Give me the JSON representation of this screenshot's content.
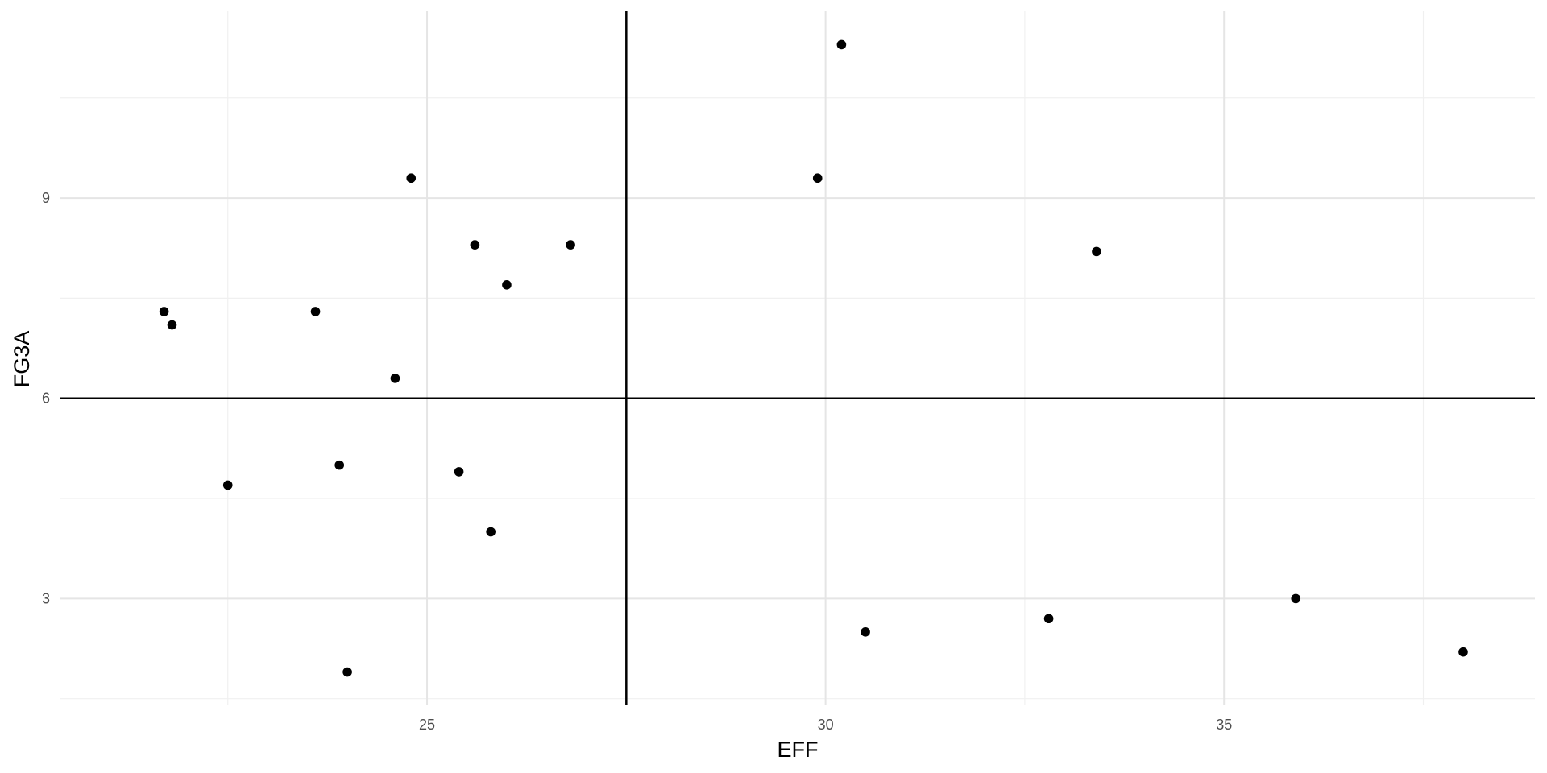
{
  "chart_data": {
    "type": "scatter",
    "title": "",
    "xlabel": "EFF",
    "ylabel": "FG3A",
    "xlim": [
      20.4,
      38.9
    ],
    "ylim": [
      1.4,
      11.8
    ],
    "x_ticks": [
      25,
      30,
      35
    ],
    "y_ticks": [
      3,
      6,
      9
    ],
    "x_minor_ticks": [
      22.5,
      27.5,
      32.5,
      37.5
    ],
    "y_minor_ticks": [
      1.5,
      4.5,
      7.5,
      10.5
    ],
    "grid": true,
    "legend": "none",
    "reference_lines": {
      "vertical_x": 27.5,
      "horizontal_y": 6.0
    },
    "series": [
      {
        "points": [
          {
            "x": 30.2,
            "y": 11.3
          },
          {
            "x": 24.8,
            "y": 9.3
          },
          {
            "x": 29.9,
            "y": 9.3
          },
          {
            "x": 25.6,
            "y": 8.3
          },
          {
            "x": 26.8,
            "y": 8.3
          },
          {
            "x": 33.4,
            "y": 8.2
          },
          {
            "x": 26.0,
            "y": 7.7
          },
          {
            "x": 21.7,
            "y": 7.3
          },
          {
            "x": 23.6,
            "y": 7.3
          },
          {
            "x": 21.8,
            "y": 7.1
          },
          {
            "x": 24.6,
            "y": 6.3
          },
          {
            "x": 23.9,
            "y": 5.0
          },
          {
            "x": 25.4,
            "y": 4.9
          },
          {
            "x": 22.5,
            "y": 4.7
          },
          {
            "x": 25.8,
            "y": 4.0
          },
          {
            "x": 35.9,
            "y": 3.0
          },
          {
            "x": 32.8,
            "y": 2.7
          },
          {
            "x": 30.5,
            "y": 2.5
          },
          {
            "x": 38.0,
            "y": 2.2
          },
          {
            "x": 24.0,
            "y": 1.9
          }
        ]
      }
    ],
    "colors": {
      "points": "#000000",
      "reference_lines": "#000000",
      "grid_major": "#e5e5e5",
      "grid_minor": "#f0f0f0",
      "tick_labels": "#4d4d4d"
    }
  }
}
